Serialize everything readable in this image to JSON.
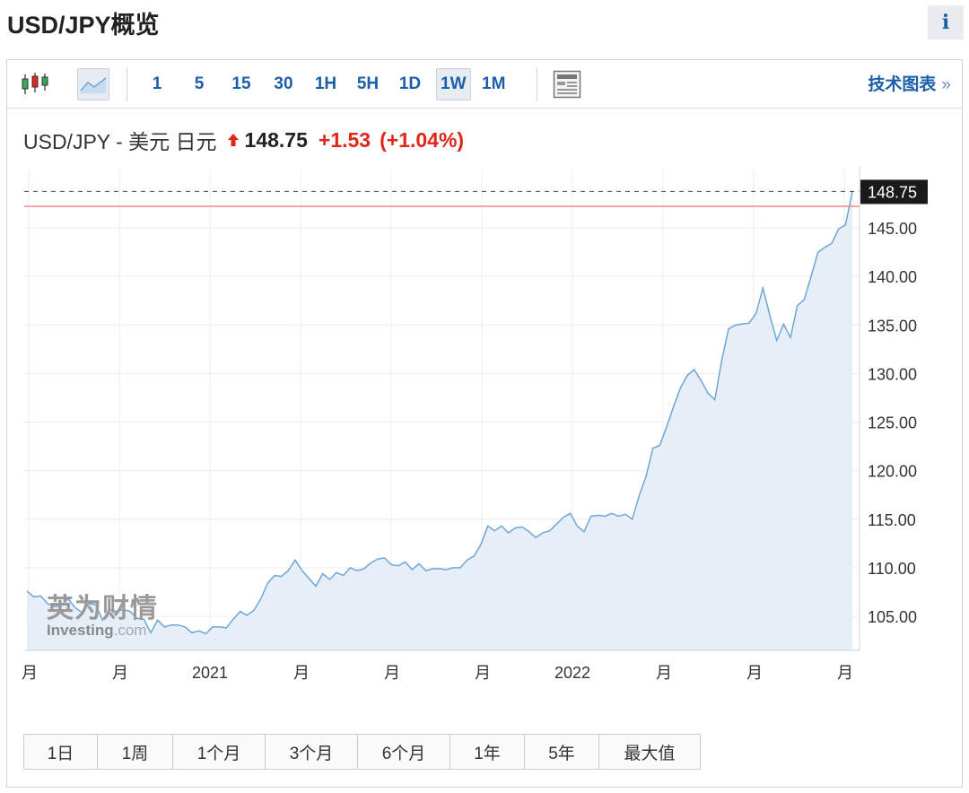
{
  "page": {
    "title": "USD/JPY概览",
    "info_label": "i"
  },
  "toolbar": {
    "intervals": [
      "1",
      "5",
      "15",
      "30",
      "1H",
      "5H",
      "1D",
      "1W",
      "1M"
    ],
    "active_interval": "1W",
    "tech_chart_label": "技术图表",
    "tech_chart_arrows": "»"
  },
  "quote": {
    "name": "USD/JPY - 美元 日元",
    "price": "148.75",
    "change": "+1.53",
    "change_pct": "(+1.04%)"
  },
  "watermark": {
    "cn": "英为财情",
    "en": "Investing",
    "dotcom": ".com"
  },
  "range_buttons": [
    "1日",
    "1周",
    "1个月",
    "3个月",
    "6个月",
    "1年",
    "5年",
    "最大值"
  ],
  "colors": {
    "accent": "#1c5fa8",
    "up": "#e0261b",
    "line": "#6ea6d6",
    "area": "#e6eef8",
    "prev_close": "#f08a86"
  },
  "chart_data": {
    "type": "area",
    "ylim": [
      102,
      152
    ],
    "yticks": [
      105,
      110,
      115,
      120,
      125,
      130,
      135,
      140,
      145
    ],
    "ytick_labels": [
      "105.00",
      "110.00",
      "115.00",
      "120.00",
      "125.00",
      "130.00",
      "135.00",
      "140.00",
      "145.00"
    ],
    "xtick_labels": [
      "月",
      "月",
      "2021",
      "月",
      "月",
      "月",
      "2022",
      "月",
      "月",
      "月"
    ],
    "last_price_label": "148.75",
    "last_price": 148.75,
    "prev_close": 147.22,
    "values": [
      107.6,
      107.0,
      107.1,
      106.3,
      106.0,
      106.1,
      106.8,
      105.9,
      105.4,
      106.3,
      106.2,
      104.6,
      105.7,
      105.5,
      105.7,
      105.5,
      104.8,
      104.7,
      103.3,
      104.6,
      103.9,
      104.1,
      104.1,
      103.9,
      103.3,
      103.5,
      103.2,
      103.9,
      103.9,
      103.8,
      104.7,
      105.5,
      105.1,
      105.6,
      106.8,
      108.4,
      109.2,
      109.1,
      109.7,
      110.8,
      109.7,
      108.9,
      108.1,
      109.4,
      108.8,
      109.5,
      109.2,
      110.0,
      109.7,
      109.9,
      110.5,
      110.9,
      111.0,
      110.3,
      110.2,
      110.6,
      109.8,
      110.4,
      109.7,
      109.9,
      109.9,
      109.8,
      110.0,
      110.0,
      110.8,
      111.2,
      112.4,
      114.3,
      113.8,
      114.3,
      113.6,
      114.1,
      114.2,
      113.7,
      113.1,
      113.6,
      113.8,
      114.5,
      115.2,
      115.6,
      114.3,
      113.7,
      115.3,
      115.4,
      115.3,
      115.6,
      115.3,
      115.5,
      115.0,
      117.4,
      119.4,
      122.3,
      122.6,
      124.5,
      126.6,
      128.5,
      129.8,
      130.4,
      129.3,
      128.0,
      127.3,
      131.3,
      134.6,
      135.0,
      135.1,
      135.2,
      136.2,
      138.8,
      136.0,
      133.4,
      135.1,
      133.7,
      137.0,
      137.6,
      140.0,
      142.5,
      143.0,
      143.4,
      144.9,
      145.3,
      148.75
    ]
  }
}
